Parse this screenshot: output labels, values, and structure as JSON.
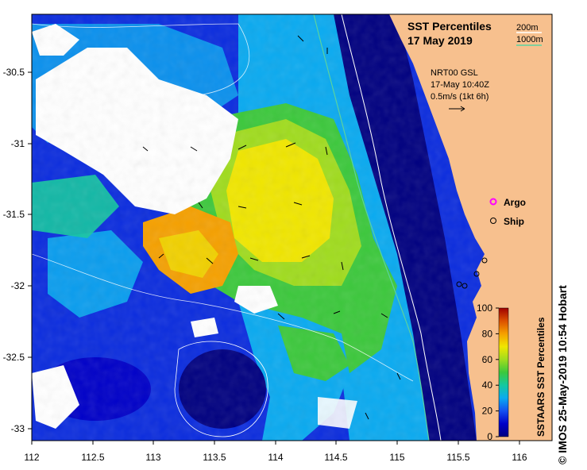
{
  "map": {
    "title": "SST Percentiles",
    "date": "17 May 2019",
    "legend_200m": "200m",
    "legend_1000m": "1000m",
    "current_source": "NRT00 GSL",
    "current_time": "17-May 10:40Z",
    "current_scale": "0.5m/s (1kt 6h)",
    "argo_label": "Argo",
    "ship_label": "Ship",
    "colorbar_title": "SSTAARS SST Percentiles",
    "colorbar_ticks": [
      "100",
      "80",
      "60",
      "40",
      "20",
      "0"
    ],
    "lon_ticks": [
      "112",
      "112.5",
      "113",
      "113.5",
      "114",
      "114.5",
      "115",
      "115.5",
      "116"
    ],
    "lat_ticks": [
      "-30.5",
      "-31",
      "-31.5",
      "-32",
      "-32.5",
      "-33"
    ],
    "credit": "© IMOS 25-May-2019 10:54 Hobart",
    "colors": {
      "land": "#f7c08e",
      "p0": "#000080",
      "p10": "#0000c8",
      "p20": "#1450f0",
      "p30": "#0aaaf0",
      "p40": "#14c8a0",
      "p50": "#3cc83c",
      "p60": "#a0dc1e",
      "p70": "#f0e600",
      "p80": "#f5a000",
      "p90": "#dc5000",
      "p100": "#a00000",
      "cloud": "#ffffff",
      "contour_200m": "#ffffff",
      "contour_1000m": "#5ad2a0",
      "argo": "#ff00ff"
    }
  }
}
